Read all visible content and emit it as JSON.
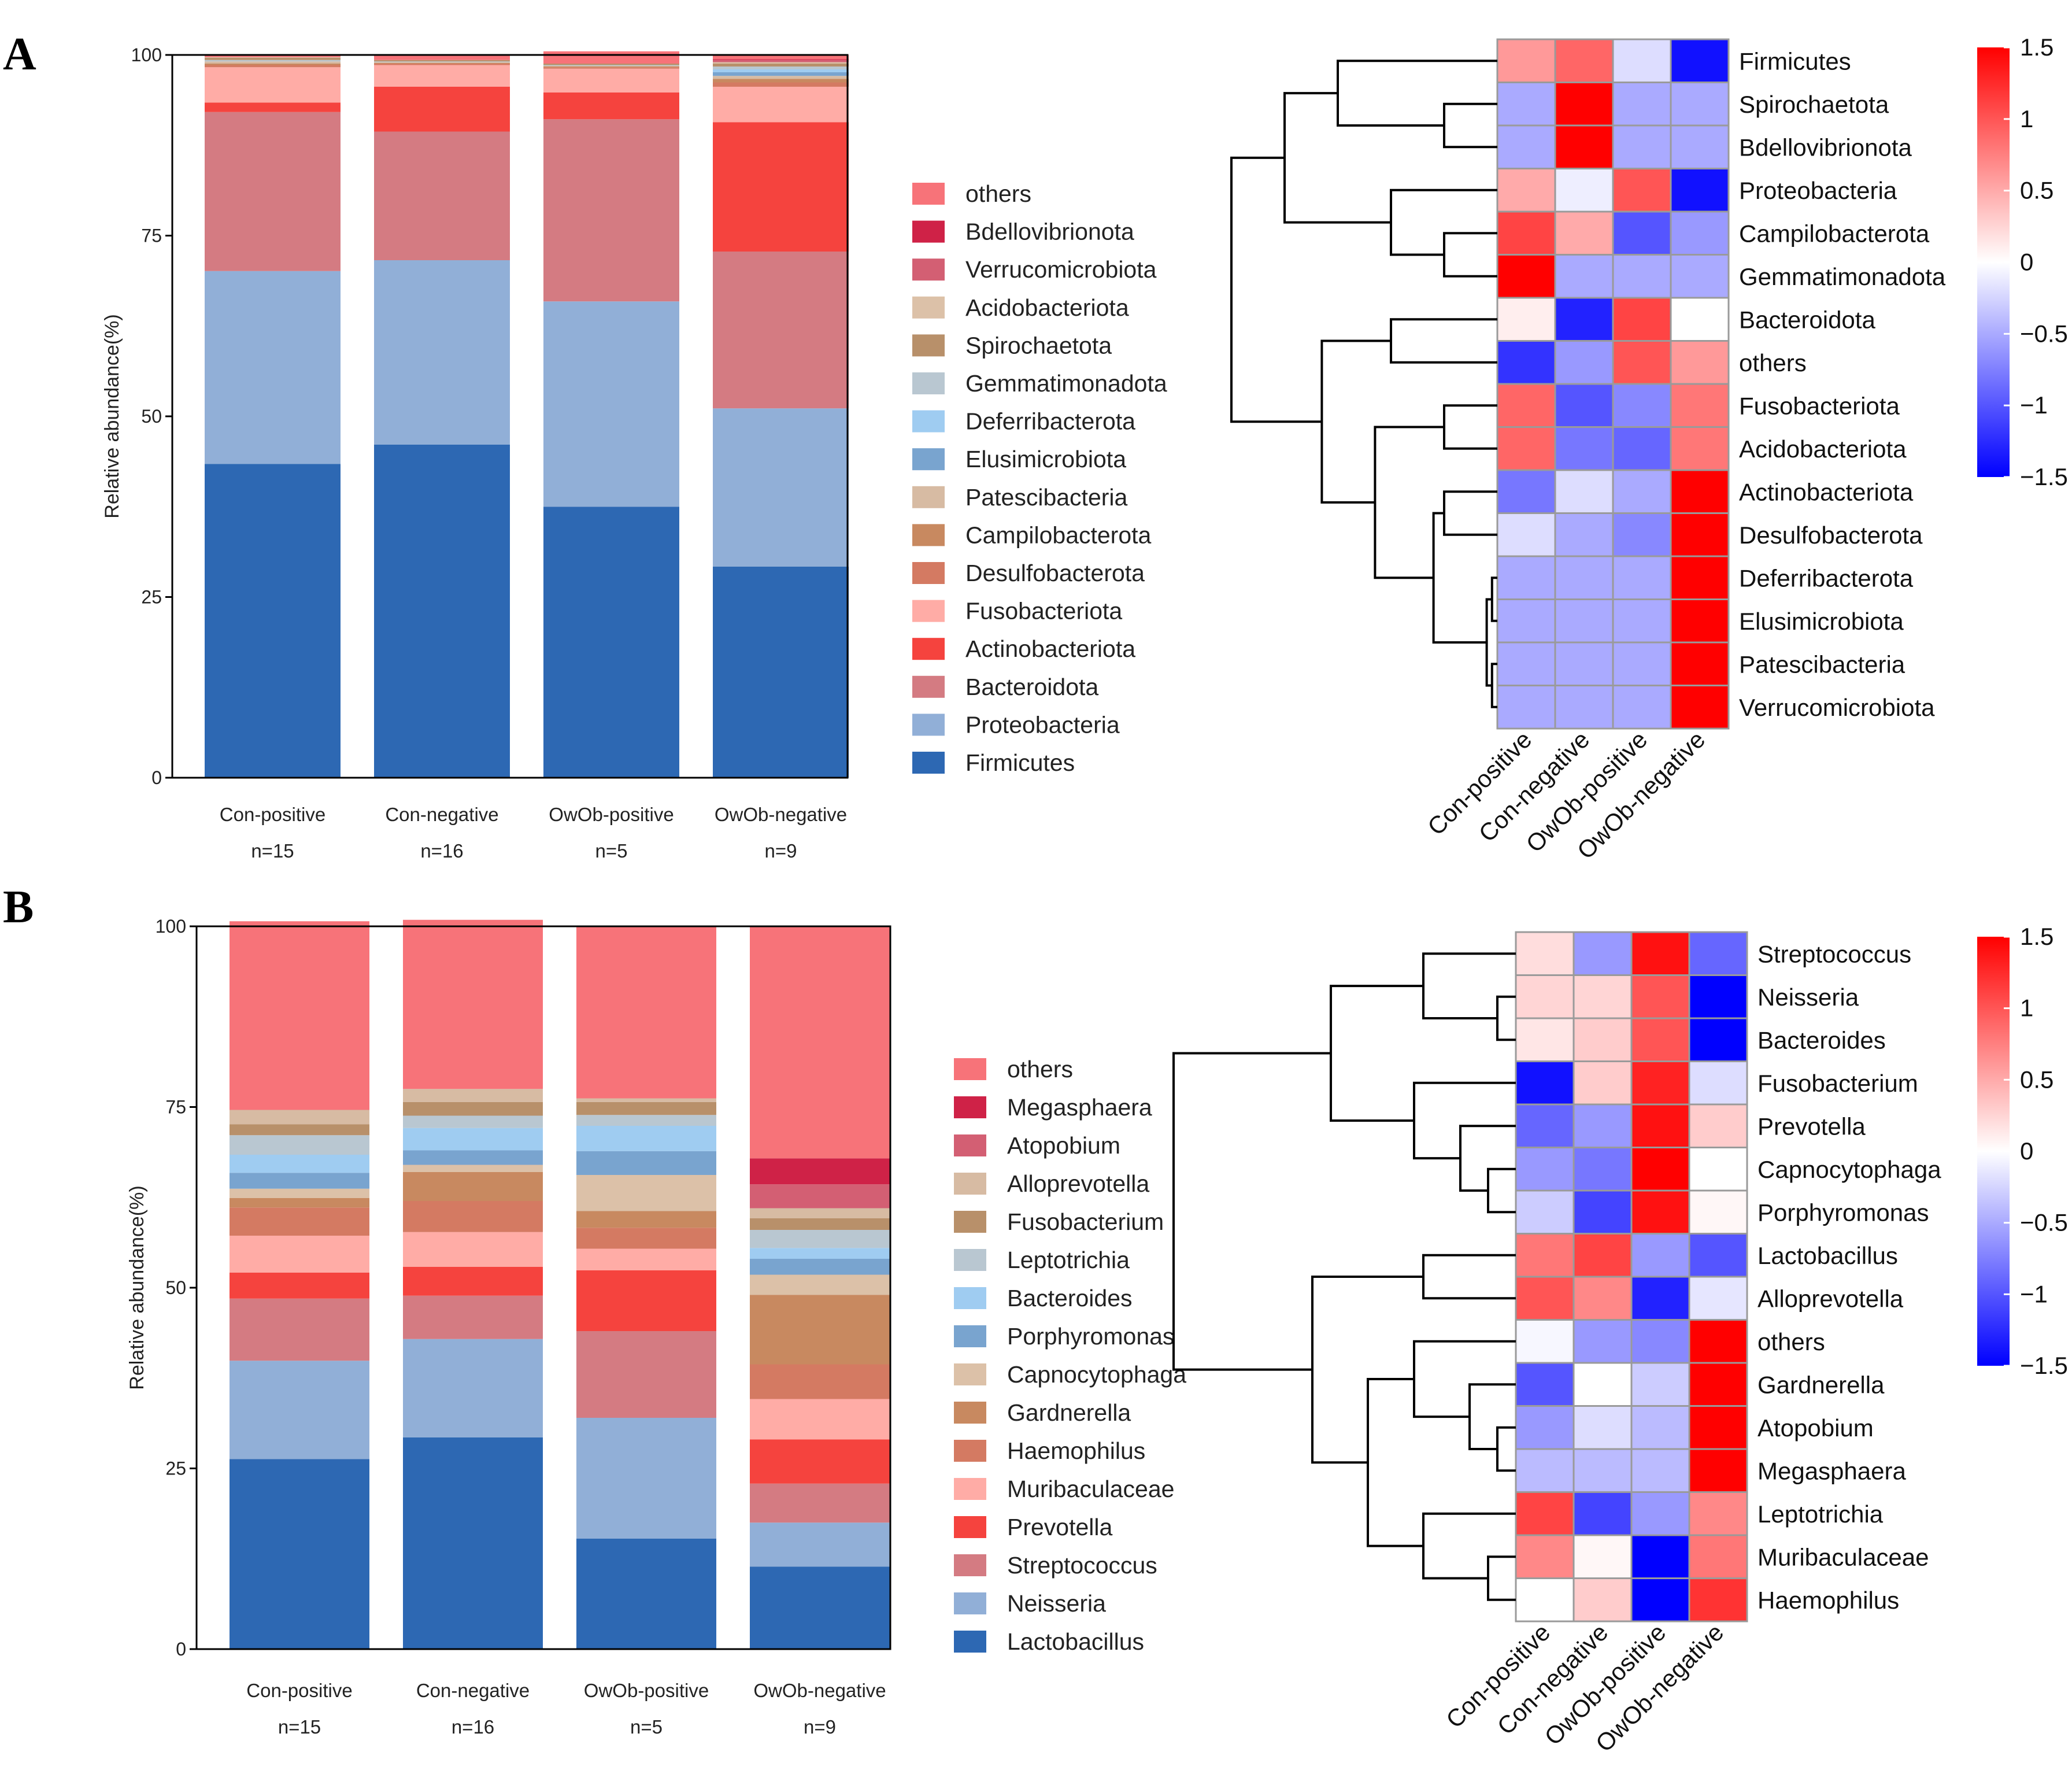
{
  "chart_data": [
    {
      "panel": "A",
      "type": "bar",
      "stacked": true,
      "ylabel": "Relative abundance(%)",
      "ylim": [
        0,
        100
      ],
      "yticks": [
        0,
        25,
        50,
        75,
        100
      ],
      "categories": [
        "Con-positive",
        "Con-negative",
        "OwOb-positive",
        "OwOb-negative"
      ],
      "group_sizes": [
        "n=15",
        "n=16",
        "n=5",
        "n=9"
      ],
      "legend_order_top_to_bottom": [
        "others",
        "Bdellovibrionota",
        "Verrucomicrobiota",
        "Acidobacteriota",
        "Spirochaetota",
        "Gemmatimonadota",
        "Deferribacterota",
        "Elusimicrobiota",
        "Patescibacteria",
        "Campilobacterota",
        "Desulfobacterota",
        "Fusobacteriota",
        "Actinobacteriota",
        "Bacteroidota",
        "Proteobacteria",
        "Firmicutes"
      ],
      "series": [
        {
          "name": "Firmicutes",
          "color": "#2D68B3",
          "values": [
            43.4,
            46.1,
            37.5,
            29.2
          ]
        },
        {
          "name": "Proteobacteria",
          "color": "#91AFD7",
          "values": [
            26.7,
            25.5,
            28.4,
            21.9
          ]
        },
        {
          "name": "Bacteroidota",
          "color": "#D47B82",
          "values": [
            22.0,
            17.8,
            25.2,
            21.7
          ]
        },
        {
          "name": "Actinobacteriota",
          "color": "#F5433E",
          "values": [
            1.3,
            6.2,
            3.7,
            17.9
          ]
        },
        {
          "name": "Fusobacteriota",
          "color": "#FFACA6",
          "values": [
            4.9,
            3.0,
            3.3,
            4.9
          ]
        },
        {
          "name": "Desulfobacterota",
          "color": "#D47A62",
          "values": [
            0.3,
            0.2,
            0.2,
            0.6
          ]
        },
        {
          "name": "Campilobacterota",
          "color": "#C88960",
          "values": [
            0.2,
            0.1,
            0.1,
            0.5
          ]
        },
        {
          "name": "Patescibacteria",
          "color": "#D7BBA3",
          "values": [
            0.3,
            0.1,
            0.1,
            0.4
          ]
        },
        {
          "name": "Elusimicrobiota",
          "color": "#79A4CF",
          "values": [
            0.0,
            0.0,
            0.0,
            0.5
          ]
        },
        {
          "name": "Deferribacterota",
          "color": "#9FCCF1",
          "values": [
            0.0,
            0.0,
            0.0,
            0.4
          ]
        },
        {
          "name": "Gemmatimonadota",
          "color": "#B9C7D1",
          "values": [
            0.2,
            0.1,
            0.1,
            0.4
          ]
        },
        {
          "name": "Spirochaetota",
          "color": "#B8906A",
          "values": [
            0.3,
            0.2,
            0.2,
            0.4
          ]
        },
        {
          "name": "Acidobacteriota",
          "color": "#DCC1A8",
          "values": [
            0.1,
            0.0,
            0.0,
            0.2
          ]
        },
        {
          "name": "Verrucomicrobiota",
          "color": "#D35F73",
          "values": [
            0.0,
            0.0,
            0.0,
            0.3
          ]
        },
        {
          "name": "Bdellovibrionota",
          "color": "#CF2247",
          "values": [
            0.0,
            0.0,
            0.0,
            0.1
          ]
        },
        {
          "name": "others",
          "color": "#F77379",
          "values": [
            0.3,
            0.8,
            1.7,
            0.6
          ]
        }
      ]
    },
    {
      "panel": "A",
      "type": "heatmap",
      "columns": [
        "Con-positive",
        "Con-negative",
        "OwOb-positive",
        "OwOb-negative"
      ],
      "rows": [
        "Firmicutes",
        "Spirochaetota",
        "Bdellovibrionota",
        "Proteobacteria",
        "Campilobacterota",
        "Gemmatimonadota",
        "Bacteroidota",
        "others",
        "Fusobacteriota",
        "Acidobacteriota",
        "Actinobacteriota",
        "Desulfobacterota",
        "Deferribacterota",
        "Elusimicrobiota",
        "Patescibacteria",
        "Verrucomicrobiota"
      ],
      "values": [
        [
          0.6,
          0.9,
          -0.2,
          -1.4
        ],
        [
          -0.5,
          1.5,
          -0.5,
          -0.5
        ],
        [
          -0.5,
          1.5,
          -0.5,
          -0.5
        ],
        [
          0.5,
          -0.1,
          1.0,
          -1.4
        ],
        [
          1.1,
          0.5,
          -1.0,
          -0.6
        ],
        [
          1.5,
          -0.5,
          -0.5,
          -0.5
        ],
        [
          0.1,
          -1.3,
          1.1,
          0.0
        ],
        [
          -1.2,
          -0.6,
          1.0,
          0.6
        ],
        [
          0.9,
          -1.0,
          -0.7,
          0.8
        ],
        [
          0.9,
          -0.8,
          -0.9,
          0.8
        ],
        [
          -0.8,
          -0.2,
          -0.5,
          1.5
        ],
        [
          -0.2,
          -0.5,
          -0.7,
          1.5
        ],
        [
          -0.5,
          -0.5,
          -0.5,
          1.5
        ],
        [
          -0.5,
          -0.5,
          -0.5,
          1.5
        ],
        [
          -0.5,
          -0.5,
          -0.5,
          1.5
        ],
        [
          -0.5,
          -0.5,
          -0.5,
          1.5
        ]
      ],
      "colorbar_ticks": [
        "1.5",
        "1",
        "0.5",
        "0",
        "−0.5",
        "−1",
        "−1.5"
      ],
      "colors": {
        "high": "#FF0000",
        "mid": "#FFFFFF",
        "low": "#0000FF"
      }
    },
    {
      "panel": "B",
      "type": "bar",
      "stacked": true,
      "ylabel": "Relative abundance(%)",
      "ylim": [
        0,
        100
      ],
      "yticks": [
        0,
        25,
        50,
        75,
        100
      ],
      "categories": [
        "Con-positive",
        "Con-negative",
        "OwOb-positive",
        "OwOb-negative"
      ],
      "group_sizes": [
        "n=15",
        "n=16",
        "n=5",
        "n=9"
      ],
      "legend_order_top_to_bottom": [
        "others",
        "Megasphaera",
        "Atopobium",
        "Alloprevotella",
        "Fusobacterium",
        "Leptotrichia",
        "Bacteroides",
        "Porphyromonas",
        "Capnocytophaga",
        "Gardnerella",
        "Haemophilus",
        "Muribaculaceae",
        "Prevotella",
        "Streptococcus",
        "Neisseria",
        "Lactobacillus"
      ],
      "series": [
        {
          "name": "Lactobacillus",
          "color": "#2D68B3",
          "values": [
            26.3,
            29.3,
            15.3,
            11.4
          ]
        },
        {
          "name": "Neisseria",
          "color": "#91AFD7",
          "values": [
            13.6,
            13.6,
            16.7,
            6.1
          ]
        },
        {
          "name": "Streptococcus",
          "color": "#D47B82",
          "values": [
            8.6,
            6.0,
            12.0,
            5.4
          ]
        },
        {
          "name": "Prevotella",
          "color": "#F5433E",
          "values": [
            3.6,
            4.0,
            8.4,
            6.1
          ]
        },
        {
          "name": "Muribaculaceae",
          "color": "#FFACA6",
          "values": [
            5.1,
            4.8,
            3.0,
            5.6
          ]
        },
        {
          "name": "Haemophilus",
          "color": "#D47A62",
          "values": [
            3.9,
            4.3,
            2.9,
            4.8
          ]
        },
        {
          "name": "Gardnerella",
          "color": "#C88960",
          "values": [
            1.3,
            4.0,
            2.3,
            9.6
          ]
        },
        {
          "name": "Capnocytophaga",
          "color": "#DCC1A8",
          "values": [
            1.3,
            1.0,
            5.0,
            2.8
          ]
        },
        {
          "name": "Porphyromonas",
          "color": "#79A4CF",
          "values": [
            2.2,
            2.0,
            3.3,
            2.2
          ]
        },
        {
          "name": "Bacteroides",
          "color": "#9FCCF1",
          "values": [
            2.5,
            3.1,
            3.5,
            1.5
          ]
        },
        {
          "name": "Leptotrichia",
          "color": "#B9C7D1",
          "values": [
            2.7,
            1.7,
            1.5,
            2.5
          ]
        },
        {
          "name": "Fusobacterium",
          "color": "#B8906A",
          "values": [
            1.5,
            1.9,
            1.8,
            1.6
          ]
        },
        {
          "name": "Alloprevotella",
          "color": "#D7BBA3",
          "values": [
            2.0,
            1.8,
            0.5,
            1.4
          ]
        },
        {
          "name": "Atopobium",
          "color": "#D35F73",
          "values": [
            0.0,
            0.0,
            0.0,
            3.3
          ]
        },
        {
          "name": "Megasphaera",
          "color": "#CF2247",
          "values": [
            0.0,
            0.0,
            0.0,
            3.6
          ]
        },
        {
          "name": "others",
          "color": "#F77379",
          "values": [
            26.1,
            23.4,
            23.8,
            32.1
          ]
        }
      ]
    },
    {
      "panel": "B",
      "type": "heatmap",
      "columns": [
        "Con-positive",
        "Con-negative",
        "OwOb-positive",
        "OwOb-negative"
      ],
      "rows": [
        "Streptococcus",
        "Neisseria",
        "Bacteroides",
        "Fusobacterium",
        "Prevotella",
        "Capnocytophaga",
        "Porphyromonas",
        "Lactobacillus",
        "Alloprevotella",
        "others",
        "Gardnerella",
        "Atopobium",
        "Megasphaera",
        "Leptotrichia",
        "Muribaculaceae",
        "Haemophilus"
      ],
      "values": [
        [
          0.2,
          -0.6,
          1.4,
          -0.9
        ],
        [
          0.25,
          0.25,
          1.0,
          -1.5
        ],
        [
          0.15,
          0.3,
          1.0,
          -1.5
        ],
        [
          -1.4,
          0.3,
          1.3,
          -0.2
        ],
        [
          -0.9,
          -0.6,
          1.4,
          0.3
        ],
        [
          -0.6,
          -0.8,
          1.5,
          0.0
        ],
        [
          -0.3,
          -1.1,
          1.4,
          0.05
        ],
        [
          0.8,
          1.1,
          -0.6,
          -1.0
        ],
        [
          1.0,
          0.7,
          -1.3,
          -0.15
        ],
        [
          -0.05,
          -0.6,
          -0.7,
          1.5
        ],
        [
          -1.0,
          0.0,
          -0.3,
          1.5
        ],
        [
          -0.6,
          -0.2,
          -0.4,
          1.5
        ],
        [
          -0.4,
          -0.4,
          -0.4,
          1.5
        ],
        [
          1.1,
          -1.1,
          -0.6,
          0.7
        ],
        [
          0.7,
          0.05,
          -1.5,
          0.8
        ],
        [
          0.0,
          0.3,
          -1.5,
          1.2
        ]
      ],
      "colorbar_ticks": [
        "1.5",
        "1",
        "0.5",
        "0",
        "−0.5",
        "−1",
        "−1.5"
      ],
      "colors": {
        "high": "#FF0000",
        "mid": "#FFFFFF",
        "low": "#0000FF"
      }
    }
  ],
  "panel_labels": [
    "A",
    "B"
  ]
}
